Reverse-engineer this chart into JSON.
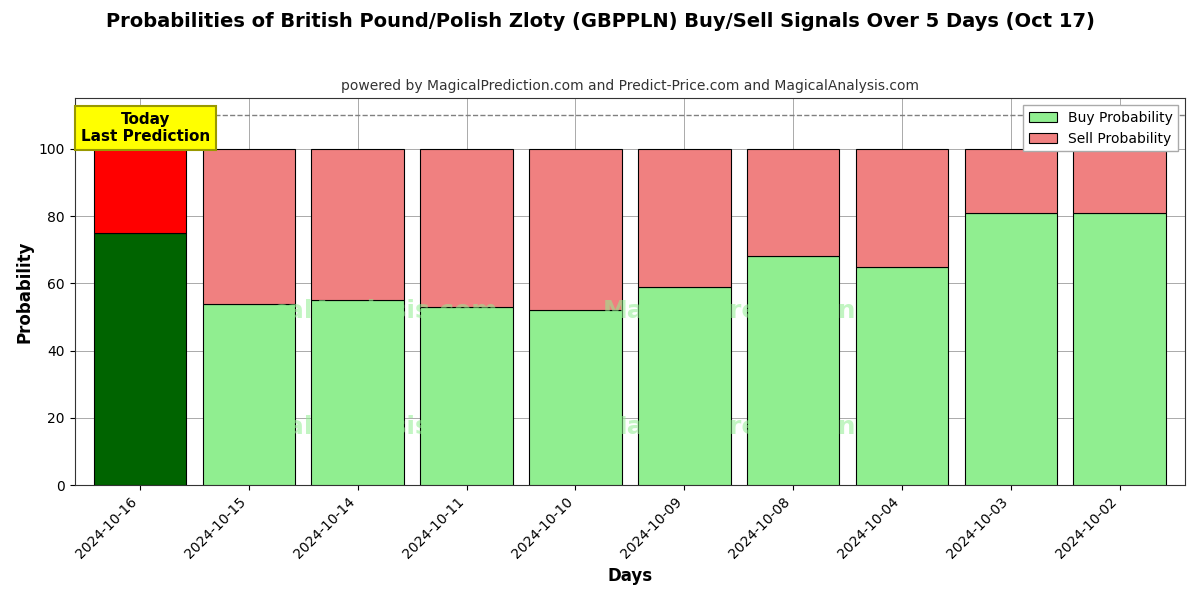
{
  "title": "Probabilities of British Pound/Polish Zloty (GBPPLN) Buy/Sell Signals Over 5 Days (Oct 17)",
  "subtitle": "powered by MagicalPrediction.com and Predict-Price.com and MagicalAnalysis.com",
  "xlabel": "Days",
  "ylabel": "Probability",
  "categories": [
    "2024-10-16",
    "2024-10-15",
    "2024-10-14",
    "2024-10-11",
    "2024-10-10",
    "2024-10-09",
    "2024-10-08",
    "2024-10-04",
    "2024-10-03",
    "2024-10-02"
  ],
  "buy_values": [
    75,
    54,
    55,
    53,
    52,
    59,
    68,
    65,
    81,
    81
  ],
  "sell_values": [
    25,
    46,
    45,
    47,
    48,
    41,
    32,
    35,
    19,
    19
  ],
  "today_buy_color": "#006400",
  "today_sell_color": "#FF0000",
  "other_buy_color": "#90EE90",
  "other_sell_color": "#F08080",
  "bar_edge_color": "#000000",
  "today_label_bg": "#FFFF00",
  "dashed_line_y": 110,
  "ylim": [
    0,
    115
  ],
  "yticks": [
    0,
    20,
    40,
    60,
    80,
    100
  ],
  "legend_buy_color": "#90EE90",
  "legend_sell_color": "#F08080",
  "background_color": "#ffffff",
  "grid_color": "#aaaaaa",
  "bar_width": 0.85
}
